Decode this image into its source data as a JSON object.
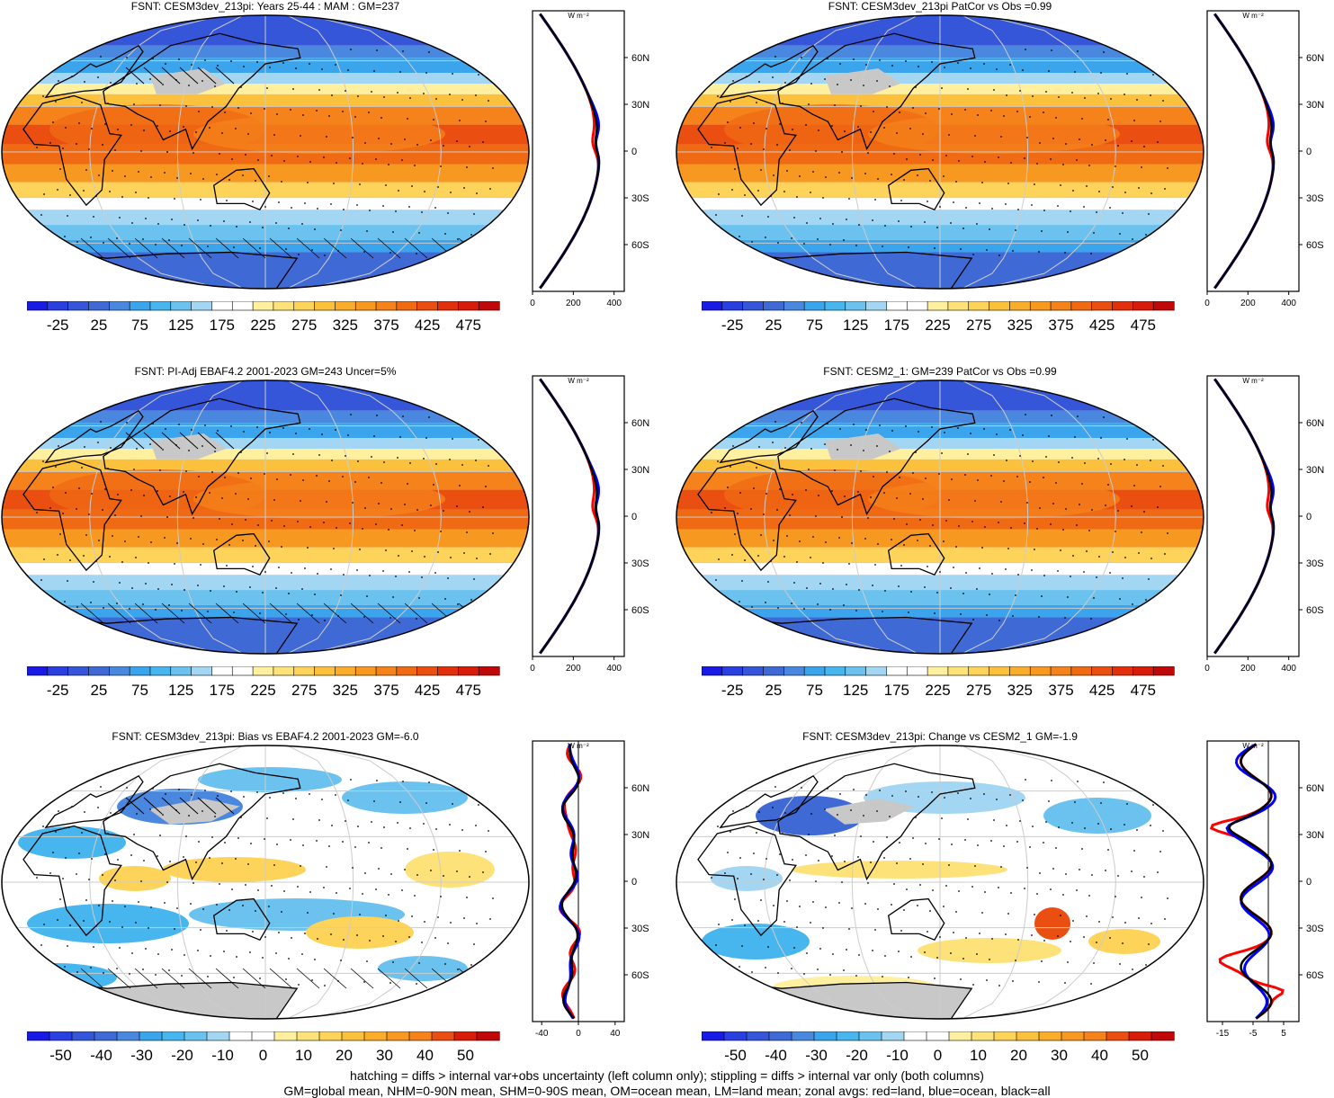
{
  "panels": [
    {
      "title": "FSNT: CESM3dev_213pi: Years 25-44 : MAM : GM=237",
      "kind": "abs",
      "colorbar_labels": [
        "-25",
        "25",
        "75",
        "125",
        "175",
        "225",
        "275",
        "325",
        "375",
        "425",
        "475"
      ],
      "profile": {
        "unit": "W m⁻²",
        "xticks": [
          "0",
          "200",
          "400"
        ],
        "yticks": [
          "60N",
          "30N",
          "0",
          "30S",
          "60S"
        ],
        "xmin": 0,
        "xmax": 450
      }
    },
    {
      "title": "FSNT: CESM3dev_213pi PatCor vs Obs =0.99",
      "kind": "abs",
      "colorbar_labels": [
        "-25",
        "25",
        "75",
        "125",
        "175",
        "225",
        "275",
        "325",
        "375",
        "425",
        "475"
      ],
      "profile": {
        "unit": "W m⁻²",
        "xticks": [
          "0",
          "200",
          "400"
        ],
        "yticks": [
          "60N",
          "30N",
          "0",
          "30S",
          "60S"
        ],
        "xmin": 0,
        "xmax": 450
      }
    },
    {
      "title": "FSNT: PI-Adj EBAF4.2 2001-2023 GM=243 Uncer=5%",
      "kind": "abs",
      "colorbar_labels": [
        "-25",
        "25",
        "75",
        "125",
        "175",
        "225",
        "275",
        "325",
        "375",
        "425",
        "475"
      ],
      "profile": {
        "unit": "W m⁻²",
        "xticks": [
          "0",
          "200",
          "400"
        ],
        "yticks": [
          "60N",
          "30N",
          "0",
          "30S",
          "60S"
        ],
        "xmin": 0,
        "xmax": 450
      }
    },
    {
      "title": "FSNT: CESM2_1: GM=239 PatCor vs Obs =0.99",
      "kind": "abs",
      "colorbar_labels": [
        "-25",
        "25",
        "75",
        "125",
        "175",
        "225",
        "275",
        "325",
        "375",
        "425",
        "475"
      ],
      "profile": {
        "unit": "W m⁻²",
        "xticks": [
          "0",
          "200",
          "400"
        ],
        "yticks": [
          "60N",
          "30N",
          "0",
          "30S",
          "60S"
        ],
        "xmin": 0,
        "xmax": 450
      }
    },
    {
      "title": "FSNT: CESM3dev_213pi: Bias vs EBAF4.2 2001-2023 GM=-6.0",
      "kind": "diff",
      "colorbar_labels": [
        "-50",
        "-40",
        "-30",
        "-20",
        "-10",
        "0",
        "10",
        "20",
        "30",
        "40",
        "50"
      ],
      "profile": {
        "unit": "W m⁻²",
        "xticks": [
          "-40",
          "0",
          "40"
        ],
        "yticks": [
          "60N",
          "30N",
          "0",
          "30S",
          "60S"
        ],
        "xmin": -50,
        "xmax": 50
      }
    },
    {
      "title": "FSNT: CESM3dev_213pi: Change vs CESM2_1 GM=-1.9",
      "kind": "diff",
      "colorbar_labels": [
        "-50",
        "-40",
        "-30",
        "-20",
        "-10",
        "0",
        "10",
        "20",
        "30",
        "40",
        "50"
      ],
      "profile": {
        "unit": "W m⁻²",
        "xticks": [
          "-15",
          "-5",
          "5"
        ],
        "yticks": [
          "60N",
          "30N",
          "0",
          "30S",
          "60S"
        ],
        "xmin": -20,
        "xmax": 10
      }
    }
  ],
  "colors": {
    "abs_levels": [
      "#1a1ae6",
      "#2a3fe0",
      "#3556d8",
      "#3f6ad6",
      "#4a88e0",
      "#3aa4ec",
      "#48b6ee",
      "#6cc2ee",
      "#a3d6f2",
      "#ffffff",
      "#ffffff",
      "#fff0a0",
      "#fde27a",
      "#fdd35a",
      "#fbc13c",
      "#f9ad2a",
      "#f79820",
      "#f5821a",
      "#f06a14",
      "#ea4e10",
      "#e2300c",
      "#d81c0a",
      "#c00808"
    ],
    "diff_levels": [
      "#1a1ae6",
      "#2a3fe0",
      "#3556d8",
      "#3f6ad6",
      "#4a88e0",
      "#3aa4ec",
      "#48b6ee",
      "#6cc2ee",
      "#a3d6f2",
      "#ffffff",
      "#ffffff",
      "#fff0a0",
      "#fde27a",
      "#fdd35a",
      "#fbc13c",
      "#f9ad2a",
      "#f79820",
      "#f5821a",
      "#ea4e10",
      "#d81c0a",
      "#c00808"
    ],
    "land_mask": "#c8c8c8",
    "profile_land": "#ff0000",
    "profile_ocean": "#0000ff",
    "profile_all": "#000000"
  },
  "footer": {
    "line1": "hatching = diffs > internal var+obs uncertainty (left column only); stippling = diffs > internal var only (both columns)",
    "line2": "GM=global mean, NHM=0-90N mean, SHM=0-90S mean, OM=ocean mean, LM=land mean; zonal avgs: red=land, blue=ocean, black=all"
  }
}
